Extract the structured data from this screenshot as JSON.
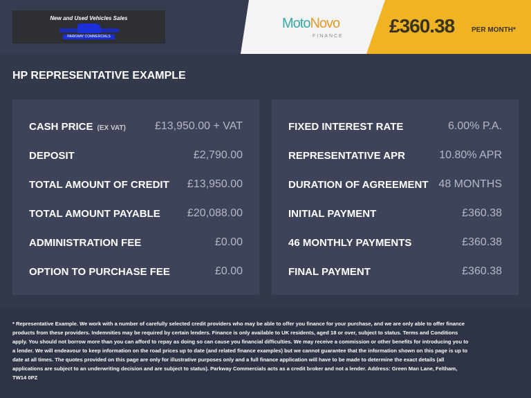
{
  "header": {
    "logo_text": "New and Used Vehicles Sales",
    "logo_subtext": "PARKWAY COMMERCIALS",
    "finance_brand_a": "Moto",
    "finance_brand_b": "Novo",
    "finance_brand_sub": "FINANCE",
    "monthly_price": "£360.38",
    "per_month": "PER MONTH*"
  },
  "title": "HP REPRESENTATIVE EXAMPLE",
  "left": [
    {
      "label": "CASH PRICE",
      "note": "(EX VAT)",
      "value": "£13,950.00 + VAT"
    },
    {
      "label": "DEPOSIT",
      "value": "£2,790.00"
    },
    {
      "label": "TOTAL AMOUNT OF CREDIT",
      "value": "£13,950.00"
    },
    {
      "label": "TOTAL AMOUNT PAYABLE",
      "value": "£20,088.00"
    },
    {
      "label": "ADMINISTRATION FEE",
      "value": "£0.00"
    },
    {
      "label": "OPTION TO PURCHASE FEE",
      "value": "£0.00"
    }
  ],
  "right": [
    {
      "label": "FIXED INTEREST RATE",
      "value": "6.00% P.A."
    },
    {
      "label": "REPRESENTATIVE APR",
      "value": "10.80% APR"
    },
    {
      "label": "DURATION OF AGREEMENT",
      "value": "48 MONTHS"
    },
    {
      "label": "INITIAL PAYMENT",
      "value": "£360.38"
    },
    {
      "label": "46 MONTHLY PAYMENTS",
      "value": "£360.38"
    },
    {
      "label": "FINAL PAYMENT",
      "value": "£360.38"
    }
  ],
  "disclaimer": "* Representative Example. We work with a number of carefully selected credit providers who may be able to offer you finance for your purchase, and we are only able to offer finance products from these providers. Indemnities may be required by certain lenders. Finance is only available to UK residents, aged 18 or over, subject to status. Terms and Conditions apply. You should not borrow more than you can afford to repay as doing so can cause you financial difficulties. We may receive a commission or other benefits for introducing you to a lender. We will endeavour to keep information on the road prices up to date (and related finance examples) but we cannot guarantee that the information shown on this page is up to date at all times. The quotes provided on this page are only for illustrative purposes only and a full finance application will have to be made to determine the exact details (all applications are subject to an underwriting decision and are subject to status). Parkway Commercials acts as a credit broker and not a lender. Address: Green Man Lane, Feltham, TW14 0PZ",
  "colors": {
    "accent": "#f0b323",
    "panel": "#3e4359",
    "background": "#33384b"
  }
}
